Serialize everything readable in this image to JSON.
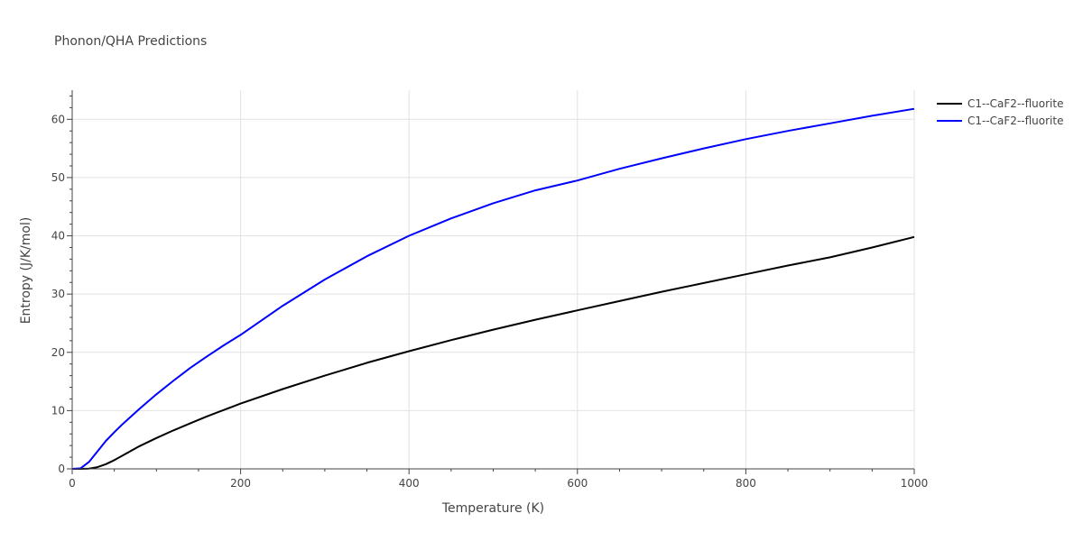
{
  "chart_data": {
    "type": "line",
    "title": "Phonon/QHA Predictions",
    "xlabel": "Temperature (K)",
    "ylabel": "Entropy (J/K/mol)",
    "xlim": [
      0,
      1000
    ],
    "ylim": [
      0,
      65
    ],
    "x_ticks": [
      0,
      200,
      400,
      600,
      800,
      1000
    ],
    "y_ticks": [
      0,
      10,
      20,
      30,
      40,
      50,
      60
    ],
    "grid": true,
    "legend_position": "top-right",
    "series": [
      {
        "name": "C1--CaF2--fluorite",
        "color": "#000000",
        "x": [
          0,
          10,
          20,
          30,
          40,
          50,
          60,
          80,
          100,
          120,
          140,
          160,
          180,
          200,
          250,
          300,
          350,
          400,
          450,
          500,
          550,
          600,
          650,
          700,
          750,
          800,
          850,
          900,
          950,
          1000
        ],
        "y": [
          0,
          0,
          0.05,
          0.3,
          0.8,
          1.5,
          2.3,
          3.9,
          5.3,
          6.6,
          7.8,
          9.0,
          10.1,
          11.2,
          13.7,
          16.0,
          18.2,
          20.2,
          22.1,
          23.9,
          25.6,
          27.2,
          28.8,
          30.4,
          31.9,
          33.4,
          34.9,
          36.3,
          38.0,
          39.8
        ]
      },
      {
        "name": "C1--CaF2--fluorite",
        "color": "#0000ff",
        "x": [
          0,
          10,
          20,
          30,
          40,
          50,
          60,
          80,
          100,
          120,
          140,
          160,
          180,
          200,
          250,
          300,
          350,
          400,
          450,
          500,
          550,
          600,
          650,
          700,
          750,
          800,
          850,
          900,
          950,
          1000
        ],
        "y": [
          0,
          0.1,
          1.2,
          3.0,
          4.8,
          6.3,
          7.7,
          10.3,
          12.8,
          15.1,
          17.3,
          19.3,
          21.2,
          23.0,
          28.0,
          32.5,
          36.5,
          40.0,
          43.0,
          45.6,
          47.8,
          49.5,
          51.5,
          53.3,
          55.0,
          56.6,
          58.0,
          59.3,
          60.6,
          61.8
        ]
      }
    ]
  }
}
